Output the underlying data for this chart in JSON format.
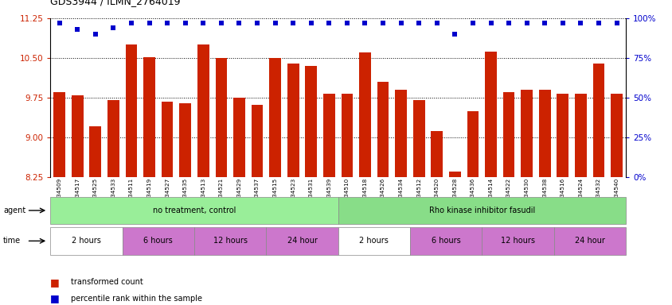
{
  "title": "GDS3944 / ILMN_2764019",
  "samples": [
    "GSM634509",
    "GSM634517",
    "GSM634525",
    "GSM634533",
    "GSM634511",
    "GSM634519",
    "GSM634527",
    "GSM634535",
    "GSM634513",
    "GSM634521",
    "GSM634529",
    "GSM634537",
    "GSM634515",
    "GSM634523",
    "GSM634531",
    "GSM634539",
    "GSM634510",
    "GSM634518",
    "GSM634526",
    "GSM634534",
    "GSM634512",
    "GSM634520",
    "GSM634528",
    "GSM634536",
    "GSM634514",
    "GSM634522",
    "GSM634530",
    "GSM634538",
    "GSM634516",
    "GSM634524",
    "GSM634532",
    "GSM634540"
  ],
  "bar_values": [
    9.85,
    9.8,
    9.2,
    9.7,
    10.75,
    10.52,
    9.68,
    9.65,
    10.75,
    10.5,
    9.75,
    9.62,
    10.5,
    10.4,
    10.35,
    9.82,
    9.82,
    10.6,
    10.05,
    9.9,
    9.7,
    9.12,
    8.35,
    9.5,
    10.62,
    9.85,
    9.9,
    9.9,
    9.82,
    9.82,
    10.4,
    9.82
  ],
  "percentile_values": [
    97,
    93,
    90,
    94,
    97,
    97,
    97,
    97,
    97,
    97,
    97,
    97,
    97,
    97,
    97,
    97,
    97,
    97,
    97,
    97,
    97,
    97,
    90,
    97,
    97,
    97,
    97,
    97,
    97,
    97,
    97,
    97
  ],
  "ylim_left": [
    8.25,
    11.25
  ],
  "yticks_left": [
    8.25,
    9.0,
    9.75,
    10.5,
    11.25
  ],
  "ylim_right": [
    0,
    100
  ],
  "yticks_right": [
    0,
    25,
    50,
    75,
    100
  ],
  "bar_color": "#cc2200",
  "dot_color": "#0000cc",
  "agent_groups": [
    {
      "label": "no treatment, control",
      "start": 0,
      "end": 16,
      "color": "#99ee99"
    },
    {
      "label": "Rho kinase inhibitor fasudil",
      "start": 16,
      "end": 32,
      "color": "#88dd88"
    }
  ],
  "time_groups": [
    {
      "label": "2 hours",
      "start": 0,
      "end": 4,
      "color": "#ffffff"
    },
    {
      "label": "6 hours",
      "start": 4,
      "end": 8,
      "color": "#cc77cc"
    },
    {
      "label": "12 hours",
      "start": 8,
      "end": 12,
      "color": "#cc77cc"
    },
    {
      "label": "24 hour",
      "start": 12,
      "end": 16,
      "color": "#cc77cc"
    },
    {
      "label": "2 hours",
      "start": 16,
      "end": 20,
      "color": "#ffffff"
    },
    {
      "label": "6 hours",
      "start": 20,
      "end": 24,
      "color": "#cc77cc"
    },
    {
      "label": "12 hours",
      "start": 24,
      "end": 28,
      "color": "#cc77cc"
    },
    {
      "label": "24 hour",
      "start": 28,
      "end": 32,
      "color": "#cc77cc"
    }
  ],
  "bg_color": "#ffffff",
  "bar_color_hex": "#cc2200",
  "dot_color_hex": "#0000cc",
  "tick_label_color_left": "#cc2200",
  "tick_label_color_right": "#0000cc",
  "title_fontsize": 9,
  "legend_label1": "transformed count",
  "legend_label2": "percentile rank within the sample",
  "agent_label": "agent",
  "time_label": "time"
}
